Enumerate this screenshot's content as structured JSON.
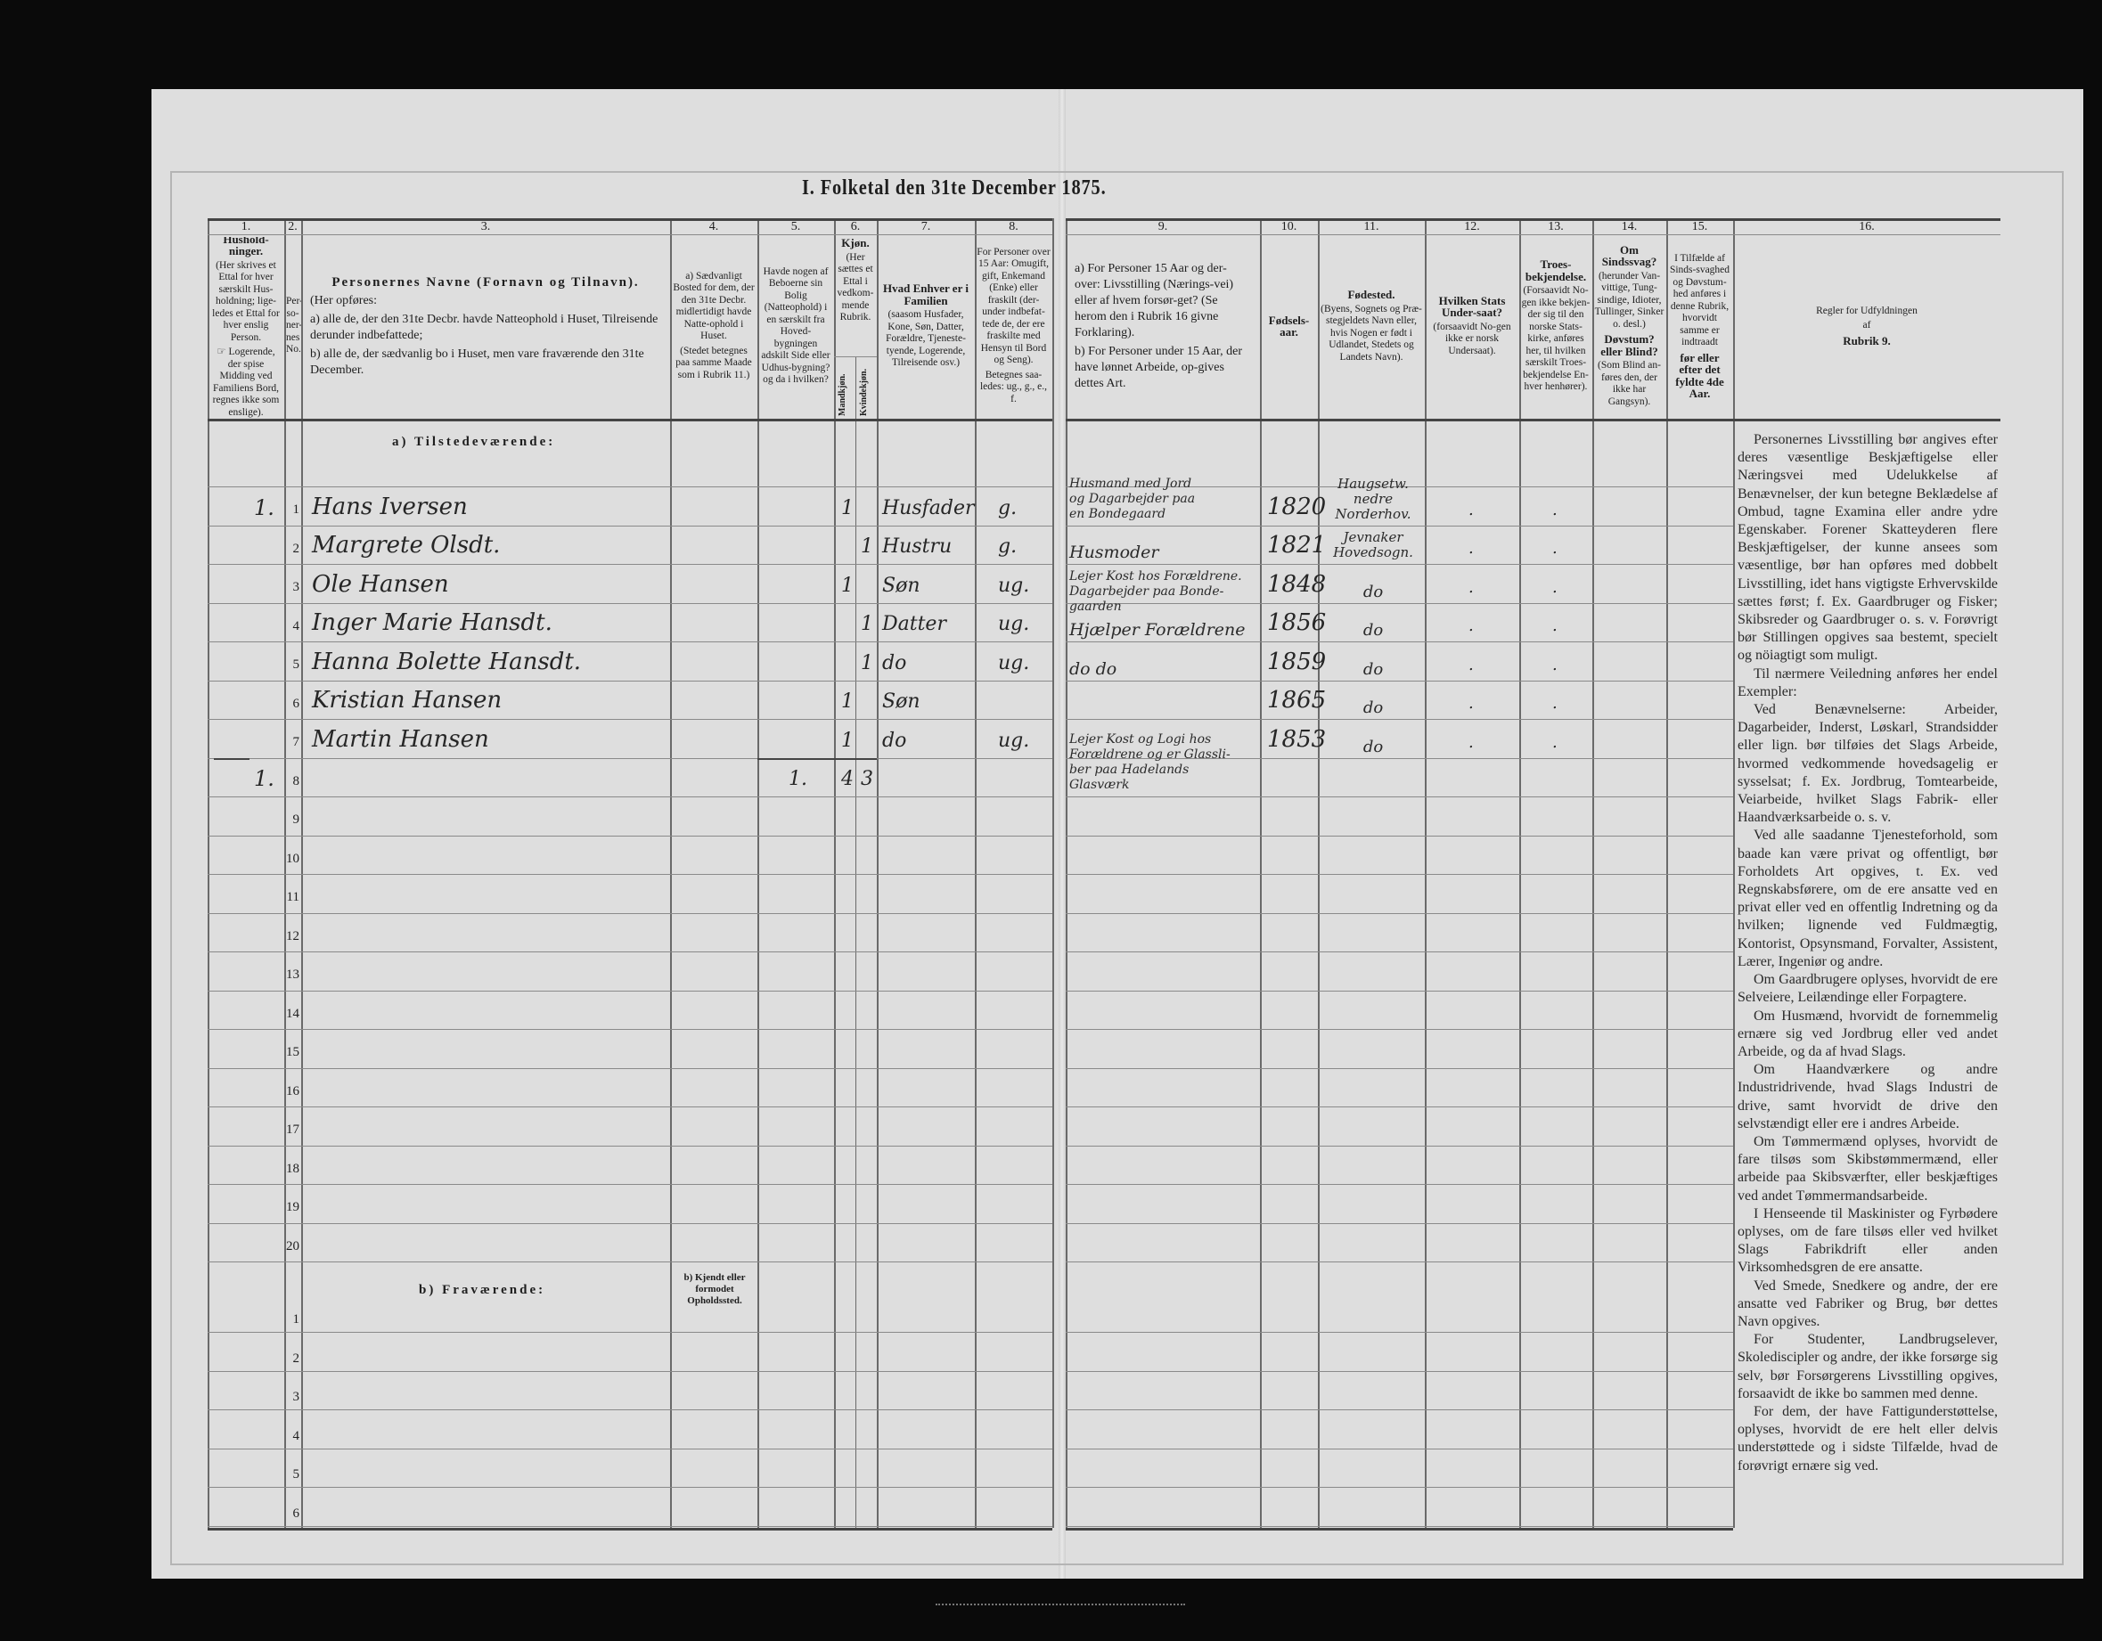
{
  "title": "I. Folketal den 31te December 1875.",
  "header": {
    "columns": [
      {
        "num": "1.",
        "paras": [
          {
            "t": "Hushold-ninger.",
            "b": true
          },
          {
            "t": "(Her skrives et Ettal for hver særskilt Hus-holdning; lige-ledes et Ettal for hver enslig Person."
          },
          {
            "t": "☞ Logerende, der spise Midding ved Familiens Bord, regnes ikke som enslige)."
          }
        ]
      },
      {
        "num": "2.",
        "paras": [
          {
            "t": "Per-so-ner-nes No."
          }
        ]
      },
      {
        "num": "3.",
        "paras": [
          {
            "t": "Personernes Navne (Fornavn og Tilnavn).",
            "b": true
          },
          {
            "t": "(Her opføres:"
          },
          {
            "t": "a) alle de, der den 31te Decbr. havde Natteophold i Huset, Tilreisende derunder indbefattede;"
          },
          {
            "t": "b) alle de, der sædvanlig bo i Huset, men vare fraværende den 31te December."
          }
        ]
      },
      {
        "num": "4.",
        "paras": [
          {
            "t": "a) Sædvanligt Bosted for dem, der den 31te Decbr. midlertidigt havde Natte-ophold i Huset."
          },
          {
            "t": "(Stedet betegnes paa samme Maade som i Rubrik 11.)"
          }
        ]
      },
      {
        "num": "5.",
        "paras": [
          {
            "t": "Havde nogen af Beboerne sin Bolig (Natteophold) i en særskilt fra Hoved-bygningen adskilt Side eller Udhus-bygning? og da i hvilken?"
          }
        ]
      },
      {
        "num": "6.",
        "paras": [
          {
            "t": "Kjøn.",
            "b": true
          },
          {
            "t": "(Her sættes et Ettal i vedkom-mende Rubrik."
          }
        ],
        "sub": [
          "Mandkjøn.",
          "Kvindekjøn."
        ]
      },
      {
        "num": "7.",
        "paras": [
          {
            "t": "Hvad Enhver er i Familien",
            "b": true
          },
          {
            "t": "(saasom Husfader, Kone, Søn, Datter, Forældre, Tjeneste-tyende, Logerende, Tilreisende osv.)"
          }
        ]
      },
      {
        "num": "8.",
        "paras": [
          {
            "t": "For Personer over 15 Aar: Omugift, gift, Enkemand (Enke) eller fraskilt (der-under indbefat-tede de, der ere fraskilte med Hensyn til Bord og Seng)."
          },
          {
            "t": "Betegnes saa-ledes: ug., g., e., f."
          }
        ]
      },
      {
        "num": "9.",
        "paras": [
          {
            "t": "a) For Personer 15 Aar og der-over: Livsstilling (Nærings-vei) eller af hvem forsør-get? (Se herom den i Rubrik 16 givne Forklaring)."
          },
          {
            "t": "b) For Personer under 15 Aar, der have lønnet Arbeide, op-gives dettes Art."
          }
        ]
      },
      {
        "num": "10.",
        "paras": [
          {
            "t": "Fødsels-aar.",
            "b": true
          }
        ]
      },
      {
        "num": "11.",
        "paras": [
          {
            "t": "Fødested.",
            "b": true
          },
          {
            "t": "(Byens, Sognets og Præ-stegjeldets Navn eller, hvis Nogen er født i Udlandet, Stedets og Landets Navn)."
          }
        ]
      },
      {
        "num": "12.",
        "paras": [
          {
            "t": "Hvilken Stats Under-saat?",
            "b": true
          },
          {
            "t": "(forsaavidt No-gen ikke er norsk Undersaat)."
          }
        ]
      },
      {
        "num": "13.",
        "paras": [
          {
            "t": "Troes-bekjendelse.",
            "b": true
          },
          {
            "t": "(Forsaavidt No-gen ikke bekjen-der sig til den norske Stats-kirke, anføres her, til hvilken særskilt Troes-bekjendelse En-hver henhører)."
          }
        ]
      },
      {
        "num": "14.",
        "paras": [
          {
            "t": "Om Sindssvag?",
            "b": true
          },
          {
            "t": "(herunder Van-vittige, Tung-sindige, Idioter, Tullinger, Sinker o. desl.)"
          },
          {
            "t": "Døvstum? eller Blind?",
            "b": true
          },
          {
            "t": "(Som Blind an-føres den, der ikke har Gangsyn)."
          }
        ]
      },
      {
        "num": "15.",
        "paras": [
          {
            "t": "I Tilfælde af Sinds-svaghed og Døvstum-hed anføres i denne Rubrik, hvorvidt samme er indtraadt"
          },
          {
            "t": "før eller efter det fyldte 4de Aar.",
            "b": true
          }
        ]
      },
      {
        "num": "16.",
        "paras": [
          {
            "t": "Regler for Udfyldningen"
          },
          {
            "t": "af"
          },
          {
            "t": "Rubrik 9.",
            "b": true
          }
        ]
      }
    ]
  },
  "sections": {
    "present": "a) Tilstedeværende:",
    "absent": "b) Fraværende:",
    "absent_col4": "b) Kjendt eller formodet Opholdssted."
  },
  "present_row_numbers": [
    "1",
    "2",
    "3",
    "4",
    "5",
    "6",
    "7",
    "8",
    "9",
    "10",
    "11",
    "12",
    "13",
    "14",
    "15",
    "16",
    "17",
    "18",
    "19",
    "20"
  ],
  "absent_row_numbers": [
    "1",
    "2",
    "3",
    "4",
    "5",
    "6"
  ],
  "rows": [
    {
      "household": "1.",
      "name": "Hans Iversen",
      "male": "1",
      "female": "",
      "relation": "Husfader",
      "marital": "g.",
      "occupation": [
        "Husmand med Jord",
        "og Dagarbejder paa",
        "en Bondegaard"
      ],
      "birth_year": "1820",
      "birthplace": [
        "Haugsetw.",
        "nedre",
        "Norderhov."
      ],
      "c12": ".",
      "c13": "."
    },
    {
      "household": "",
      "name": "Margrete Olsdt.",
      "male": "",
      "female": "1",
      "relation": "Hustru",
      "marital": "g.",
      "occupation": [
        "Husmoder"
      ],
      "birth_year": "1821",
      "birthplace": [
        "Jevnaker",
        "Hovedsogn."
      ],
      "c12": ".",
      "c13": "."
    },
    {
      "household": "",
      "name": "Ole Hansen",
      "male": "1",
      "female": "",
      "relation": "Søn",
      "marital": "ug.",
      "occupation": [
        "Lejer Kost hos Forældrene.",
        "Dagarbejder paa Bonde-",
        "gaarden"
      ],
      "birth_year": "1848",
      "birthplace": [
        "do"
      ],
      "c12": ".",
      "c13": "."
    },
    {
      "household": "",
      "name": "Inger Marie Hansdt.",
      "male": "",
      "female": "1",
      "relation": "Datter",
      "marital": "ug.",
      "occupation": [
        "Hjælper Forældrene"
      ],
      "birth_year": "1856",
      "birthplace": [
        "do"
      ],
      "c12": ".",
      "c13": "."
    },
    {
      "household": "",
      "name": "Hanna Bolette Hansdt.",
      "male": "",
      "female": "1",
      "relation": "do",
      "marital": "ug.",
      "occupation": [
        "do          do"
      ],
      "birth_year": "1859",
      "birthplace": [
        "do"
      ],
      "c12": ".",
      "c13": "."
    },
    {
      "household": "",
      "name": "Kristian Hansen",
      "male": "1",
      "female": "",
      "relation": "Søn",
      "marital": "",
      "occupation": [],
      "birth_year": "1865",
      "birthplace": [
        "do"
      ],
      "c12": ".",
      "c13": "."
    },
    {
      "household": "",
      "name": "Martin Hansen",
      "male": "1",
      "female": "",
      "relation": "do",
      "marital": "ug.",
      "occupation": [
        "Lejer Kost og Logi hos",
        "Forældrene og er Glassli-",
        "ber paa Hadelands",
        "Glasværk"
      ],
      "birth_year": "1853",
      "birthplace": [
        "do"
      ],
      "c12": ".",
      "c13": "."
    },
    {
      "household": "1.",
      "name": "",
      "c5": "1.",
      "male": "4",
      "female": "3",
      "relation": "",
      "marital": "",
      "occupation": [],
      "birth_year": "",
      "birthplace": [],
      "c12": "",
      "c13": ""
    }
  ],
  "rules": [
    {
      "t": "Personernes Livsstilling bør angives efter deres væsentlige Beskjæftigelse eller Næringsvei med Udelukkelse af Benævnelser, der kun betegne Beklædelse af Ombud, tagne Examina eller andre ydre Egenskaber. Forener Skatteyderen flere Beskjæftigelser, der kunne ansees som væsentlige, bør han opføres med dobbelt Livsstilling, idet hans vigtigste Erhvervskilde sættes først; f. Ex. Gaardbruger og Fisker; Skibsreder og Gaardbruger o. s. v. Forøvrigt bør Stillingen opgives saa bestemt, specielt og nöiagtigt som muligt."
    },
    {
      "t": "Til nærmere Veiledning anføres her endel Exempler:"
    },
    {
      "t": "Ved Benævnelserne: Arbeider, Dagarbeider, Inderst, Løskarl, Strandsidder eller lign. bør tilføies det Slags Arbeide, hvormed vedkommende hovedsagelig er sysselsat; f. Ex. Jordbrug, Tomtearbeide, Veiarbeide, hvilket Slags Fabrik- eller Haandværksarbeide o. s. v."
    },
    {
      "t": "Ved alle saadanne Tjenesteforhold, som baade kan være privat og offentligt, bør Forholdets Art opgives, t. Ex. ved Regnskabsførere, om de ere ansatte ved en privat eller ved en offentlig Indretning og da hvilken; lignende ved Fuldmægtig, Kontorist, Opsynsmand, Forvalter, Assistent, Lærer, Ingeniør og andre."
    },
    {
      "t": "Om Gaardbrugere oplyses, hvorvidt de ere Selveiere, Leilændinge eller Forpagtere."
    },
    {
      "t": "Om Husmænd, hvorvidt de fornemmelig ernære sig ved Jordbrug eller ved andet Arbeide, og da af hvad Slags."
    },
    {
      "t": "Om Haandværkere og andre Industridrivende, hvad Slags Industri de drive, samt hvorvidt de drive den selvstændigt eller ere i andres Arbeide."
    },
    {
      "t": "Om Tømmermænd oplyses, hvorvidt de fare tilsøs som Skibstømmermænd, eller arbeide paa Skibsværfter, eller beskjæftiges ved andet Tømmermandsarbeide."
    },
    {
      "t": "I Henseende til Maskinister og Fyrbødere oplyses, om de fare tilsøs eller ved hvilket Slags Fabrikdrift eller anden Virksomhedsgren de ere ansatte."
    },
    {
      "t": "Ved Smede, Snedkere og andre, der ere ansatte ved Fabriker og Brug, bør dettes Navn opgives."
    },
    {
      "t": "For Studenter, Landbrugselever, Skolediscipler og andre, der ikke forsørge sig selv, bør Forsørgerens Livsstilling opgives, forsaavidt de ikke bo sammen med denne."
    },
    {
      "t": "For dem, der have Fattigunderstøttelse, oplyses, hvorvidt de ere helt eller delvis understøttede og i sidste Tilfælde, hvad de forøvrigt ernære sig ved."
    }
  ]
}
